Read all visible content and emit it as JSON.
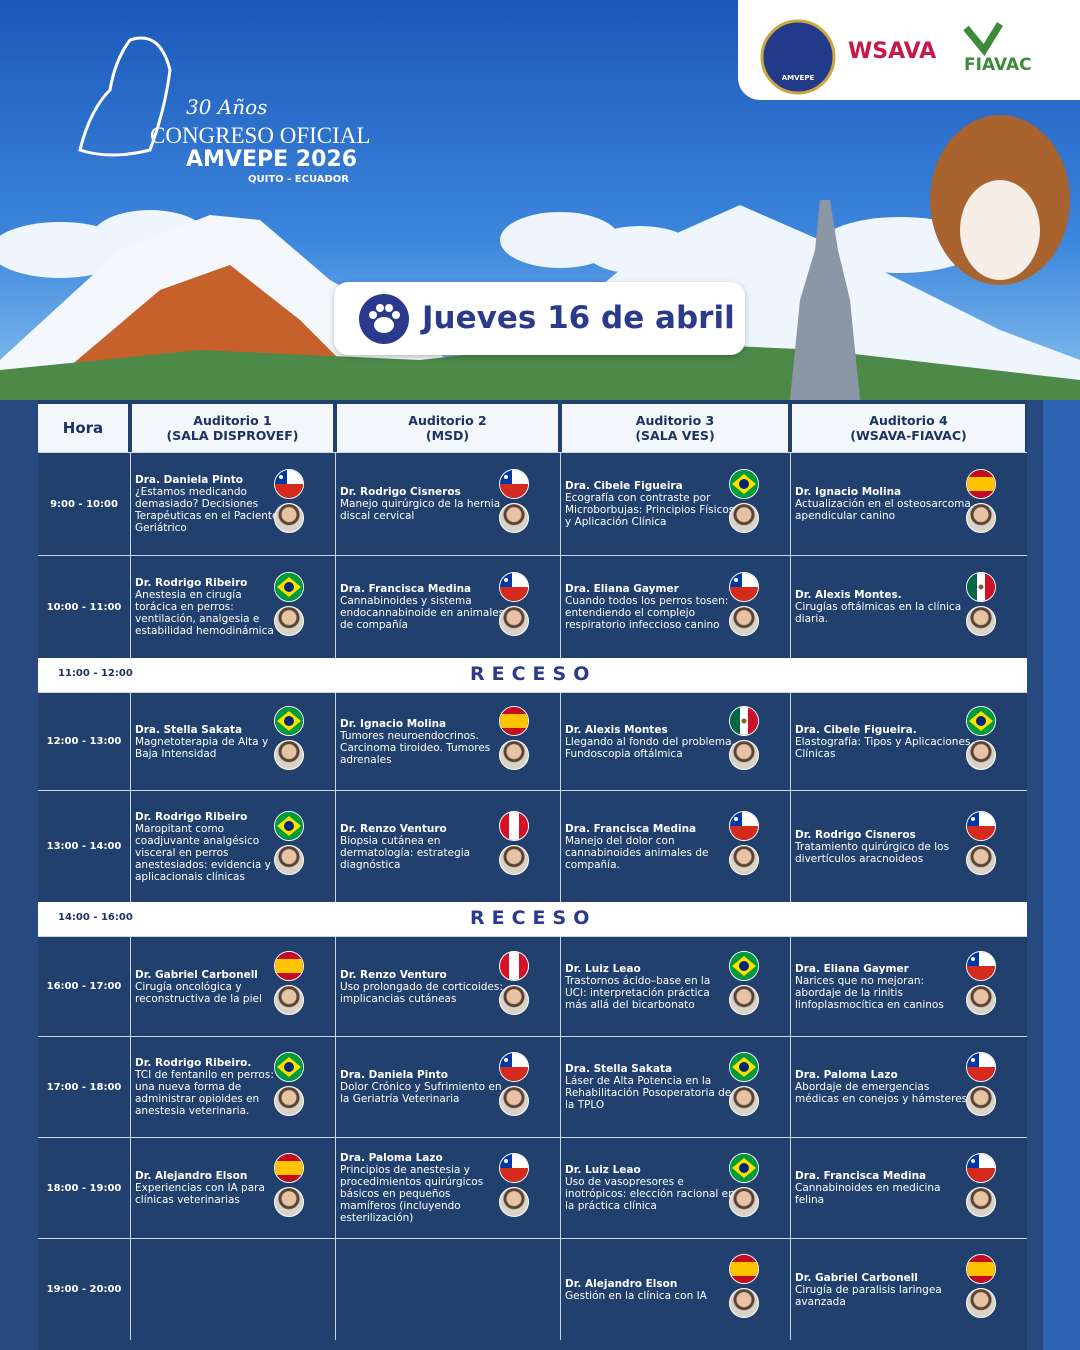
{
  "header": {
    "anniversary": "30 Años",
    "congress": "CONGRESO OFICIAL",
    "event": "AMVEPE 2026",
    "location": "QUITO - ECUADOR",
    "logos": [
      "AMVEPE",
      "WSAVA",
      "FIAVAC"
    ],
    "date": "Jueves 16 de abril"
  },
  "table": {
    "hour_header": "Hora",
    "auditoriums": [
      {
        "name": "Auditorio 1",
        "room": "(SALA DISPROVEF)"
      },
      {
        "name": "Auditorio 2",
        "room": "(MSD)"
      },
      {
        "name": "Auditorio 3",
        "room": "(SALA VES)"
      },
      {
        "name": "Auditorio 4",
        "room": "(WSAVA-FIAVAC)"
      }
    ],
    "rows": [
      {
        "time": "9:00 - 10:00",
        "sessions": [
          {
            "speaker": "Dra. Daniela Pinto",
            "topic": "¿Estamos medicando demasiado? Decisiones Terapéuticas en el Paciente Geriátrico"
          },
          {
            "speaker": "Dr. Rodrigo Cisneros",
            "topic": "Manejo quirúrgico de la hernia discal cervical"
          },
          {
            "speaker": "Dra. Cibele Figueira",
            "topic": "Ecografía con contraste por Microborbujas: Principios Físicos y Aplicación Clínica"
          },
          {
            "speaker": "Dr. Ignacio Molina",
            "topic": "Actualización en el osteosarcoma apendicular canino"
          }
        ]
      },
      {
        "time": "10:00 - 11:00",
        "sessions": [
          {
            "speaker": "Dr. Rodrigo Ribeiro",
            "topic": "Anestesia en cirugía torácica en perros: ventilación, analgesia e estabilidad hemodinámica"
          },
          {
            "speaker": "Dra. Francisca Medina",
            "topic": "Cannabinoides y sistema endocannabinoide en animales de compañía"
          },
          {
            "speaker": "Dra. Eliana Gaymer",
            "topic": "Cuando todos los perros tosen: entendiendo el complejo respiratorio infeccioso canino"
          },
          {
            "speaker": "Dr. Alexis Montes.",
            "topic": "Cirugías oftálmicas en la clínica diaria."
          }
        ]
      },
      {
        "time": "11:00 - 12:00",
        "break": "RECESO"
      },
      {
        "time": "12:00 - 13:00",
        "sessions": [
          {
            "speaker": "Dra. Stella Sakata",
            "topic": "Magnetoterapia de Alta y Baja Intensidad"
          },
          {
            "speaker": "Dr. Ignacio Molina",
            "topic": "Tumores neuroendocrinos. Carcinoma tiroideo. Tumores adrenales"
          },
          {
            "speaker": "Dr. Alexis Montes",
            "topic": "Llegando al fondo del problema. Fundoscopia oftálmica"
          },
          {
            "speaker": "Dra. Cibele Figueira.",
            "topic": "Elastografía: Tipos y Aplicaciones Clínicas"
          }
        ]
      },
      {
        "time": "13:00 - 14:00",
        "sessions": [
          {
            "speaker": "Dr. Rodrigo Ribeiro",
            "topic": "Maropitant como coadjuvante analgésico visceral en perros anestesiados: evidencia y aplicacionais clínicas"
          },
          {
            "speaker": "Dr. Renzo Venturo",
            "topic": "Biopsia cutánea en dermatología: estrategia diagnóstica"
          },
          {
            "speaker": "Dra. Francisca Medina",
            "topic": "Manejo del dolor con cannabinoides animales de compañía."
          },
          {
            "speaker": "Dr. Rodrigo Cisneros",
            "topic": "Tratamiento quirúrgico de los divertículos aracnoideos"
          }
        ]
      },
      {
        "time": "14:00 - 16:00",
        "break": "RECESO"
      },
      {
        "time": "16:00 - 17:00",
        "sessions": [
          {
            "speaker": "Dr. Gabriel Carbonell",
            "topic": "Cirugía oncológica y reconstructiva de la piel"
          },
          {
            "speaker": "Dr. Renzo Venturo",
            "topic": "Uso prolongado de corticoides: implicancias cutáneas"
          },
          {
            "speaker": "Dr. Luiz Leao",
            "topic": "Trastornos ácido–base en la UCI: interpretación práctica más allá del bicarbonato"
          },
          {
            "speaker": "Dra. Eliana Gaymer",
            "topic": "Narices que no mejoran: abordaje de la rinitis linfoplasmocítica en caninos"
          }
        ]
      },
      {
        "time": "17:00 - 18:00",
        "sessions": [
          {
            "speaker": "Dr. Rodrigo Ribeiro.",
            "topic": "TCI de fentanilo en perros: una nueva forma de administrar opioides en anestesia veterinaria."
          },
          {
            "speaker": "Dra. Daniela Pinto",
            "topic": "Dolor Crónico y Sufrimiento en la Geriatría Veterinaria"
          },
          {
            "speaker": "Dra. Stella Sakata",
            "topic": "Láser de Alta Potencia en la Rehabilitación Posoperatoria de la TPLO"
          },
          {
            "speaker": "Dra. Paloma Lazo",
            "topic": "Abordaje de emergencias médicas en conejos y hámsteres."
          }
        ]
      },
      {
        "time": "18:00 - 19:00",
        "sessions": [
          {
            "speaker": "Dr. Alejandro Elson",
            "topic": "Experiencias con IA para clínicas veterinarias"
          },
          {
            "speaker": "Dra. Paloma Lazo",
            "topic": "Principios de anestesia y procedimientos quirúrgicos básicos en pequeños mamíferos (incluyendo esterilización)"
          },
          {
            "speaker": "Dr. Luiz Leao",
            "topic": "Uso de vasopresores e inotrópicos: elección racional en la práctica clínica"
          },
          {
            "speaker": "Dra. Francisca Medina",
            "topic": "Cannabinoides en medicina felina"
          }
        ]
      },
      {
        "time": "19:00 - 20:00",
        "sessions": [
          null,
          null,
          {
            "speaker": "Dr. Alejandro Elson",
            "topic": "Gestión en la clínica con IA"
          },
          {
            "speaker": "Dr. Gabriel Carbonell",
            "topic": "Cirugía de paralisis laringea avanzada"
          }
        ]
      }
    ]
  }
}
